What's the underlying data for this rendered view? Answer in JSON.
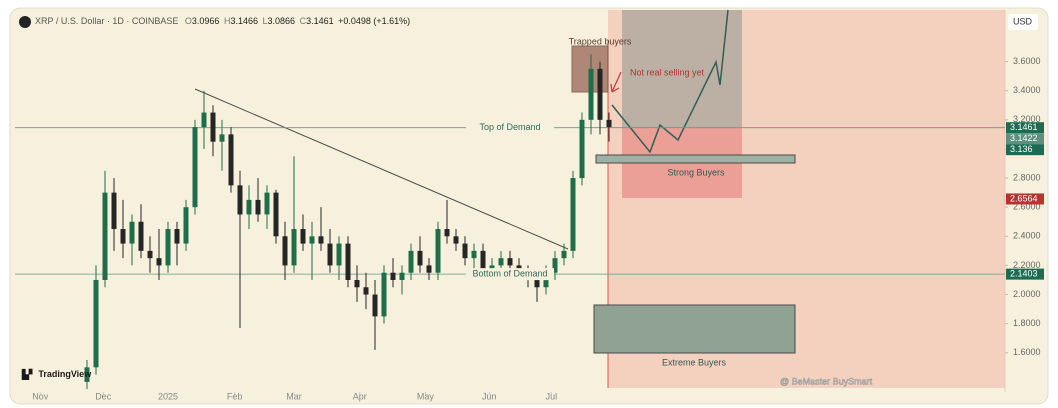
{
  "header": {
    "symbol": "XRP / U.S. Dollar · 1D · COINBASE",
    "o_key": "O",
    "o": "3.0966",
    "h_key": "H",
    "h": "3.1466",
    "l_key": "L",
    "l": "3.0866",
    "c_key": "C",
    "c": "3.1461",
    "change": "+0.0498 (+1.61%)"
  },
  "chart_data": {
    "type": "candlestick",
    "currency": "USD",
    "open": [
      1.4,
      1.5,
      2.1,
      2.7,
      2.45,
      2.35,
      2.5,
      2.3,
      2.25,
      2.2,
      2.45,
      2.35,
      2.6,
      3.15,
      3.25,
      3.05,
      3.1,
      2.75,
      2.55,
      2.65,
      2.55,
      2.7,
      2.4,
      2.2,
      2.45,
      2.35,
      2.4,
      2.35,
      2.2,
      2.35,
      2.1,
      2.05,
      2.0,
      1.85,
      2.15,
      2.1,
      2.15,
      2.3,
      2.2,
      2.15,
      2.45,
      2.4,
      2.35,
      2.25,
      2.3,
      2.15,
      2.2,
      2.25,
      2.2,
      2.15,
      2.1,
      2.05,
      2.15,
      2.25,
      2.3,
      2.8,
      3.2,
      3.55,
      3.2
    ],
    "high": [
      1.55,
      2.2,
      2.85,
      2.8,
      2.65,
      2.55,
      2.62,
      2.4,
      2.45,
      2.5,
      2.5,
      2.65,
      3.2,
      3.4,
      3.3,
      3.2,
      3.15,
      2.85,
      2.75,
      2.8,
      2.75,
      2.72,
      2.5,
      2.95,
      2.55,
      2.5,
      2.6,
      2.45,
      2.4,
      2.4,
      2.2,
      2.15,
      2.1,
      2.2,
      2.25,
      2.2,
      2.35,
      2.4,
      2.25,
      2.5,
      2.65,
      2.45,
      2.4,
      2.35,
      2.35,
      2.25,
      2.3,
      2.3,
      2.25,
      2.2,
      2.15,
      2.2,
      2.3,
      2.35,
      2.85,
      3.25,
      3.65,
      3.6,
      3.25
    ],
    "low": [
      1.35,
      1.45,
      2.05,
      2.3,
      2.25,
      2.2,
      2.25,
      2.15,
      2.1,
      2.15,
      2.2,
      2.3,
      2.55,
      3.0,
      2.95,
      2.85,
      2.7,
      1.77,
      2.45,
      2.5,
      2.45,
      2.35,
      2.1,
      2.15,
      2.3,
      2.1,
      2.3,
      2.15,
      2.1,
      2.05,
      1.95,
      1.9,
      1.62,
      1.8,
      2.05,
      2.0,
      2.1,
      2.15,
      2.1,
      2.1,
      2.35,
      2.3,
      2.2,
      2.15,
      2.1,
      2.1,
      2.1,
      2.15,
      2.1,
      2.05,
      1.95,
      2.0,
      2.1,
      2.2,
      2.25,
      2.75,
      3.1,
      3.1,
      3.05
    ],
    "close": [
      1.5,
      2.1,
      2.7,
      2.45,
      2.35,
      2.5,
      2.3,
      2.25,
      2.2,
      2.45,
      2.35,
      2.6,
      3.15,
      3.25,
      3.05,
      3.1,
      2.75,
      2.55,
      2.65,
      2.55,
      2.7,
      2.4,
      2.2,
      2.45,
      2.35,
      2.4,
      2.35,
      2.2,
      2.35,
      2.1,
      2.05,
      2.0,
      1.85,
      2.15,
      2.1,
      2.15,
      2.3,
      2.2,
      2.15,
      2.45,
      2.4,
      2.35,
      2.25,
      2.3,
      2.15,
      2.2,
      2.25,
      2.2,
      2.15,
      2.1,
      2.05,
      2.15,
      2.25,
      2.3,
      2.8,
      3.2,
      3.55,
      3.2,
      3.15
    ],
    "up_color": "#1f6e4a",
    "down_color": "#262626",
    "xlim": [
      -8,
      102
    ],
    "xticks": [
      {
        "value": -5.2,
        "label": "Nov"
      },
      {
        "value": 1.8,
        "label": "Dec"
      },
      {
        "value": 9,
        "label": "2025"
      },
      {
        "value": 16.4,
        "label": "Feb"
      },
      {
        "value": 23,
        "label": "Mar"
      },
      {
        "value": 30.3,
        "label": "Apr"
      },
      {
        "value": 37.6,
        "label": "May"
      },
      {
        "value": 44.7,
        "label": "Jun"
      },
      {
        "value": 51.6,
        "label": "Jul"
      }
    ],
    "ylim": [
      1.31,
      3.92
    ],
    "yticks": [
      {
        "value": 1.6,
        "label": "1.6000"
      },
      {
        "value": 1.8,
        "label": "1.8000"
      },
      {
        "value": 2,
        "label": "2.0000"
      },
      {
        "value": 2.2,
        "label": "2.2000"
      },
      {
        "value": 2.4,
        "label": "2.4000"
      },
      {
        "value": 2.6,
        "label": "2.6000"
      },
      {
        "value": 2.8,
        "label": "2.8000"
      },
      {
        "value": 3,
        "label": "3.0000"
      },
      {
        "value": 3.2,
        "label": "3.2000"
      },
      {
        "value": 3.4,
        "label": "3.4000"
      },
      {
        "value": 3.6,
        "label": "3.6000"
      }
    ],
    "price_labels": [
      {
        "value": 3.1461,
        "color": "#1e6b54"
      },
      {
        "value": 3.1422,
        "color": "#5f8f7e"
      },
      {
        "value": 3.136,
        "color": "#1e6b54"
      },
      {
        "value": 2.6564,
        "color": "#b73232"
      },
      {
        "value": 2.1403,
        "color": "#1e6b54"
      }
    ],
    "levels": [
      {
        "value": 3.1461,
        "label": "Top of Demand"
      },
      {
        "value": 2.1403,
        "label": "Bottom of Demand"
      }
    ],
    "annotations": [
      "Trapped buyers",
      "Not real selling yet",
      "Strong Buyers",
      "Extreme Buyers"
    ]
  },
  "branding": {
    "logo": "TradingView",
    "watermark": "@ BeMaster BuySmart"
  }
}
